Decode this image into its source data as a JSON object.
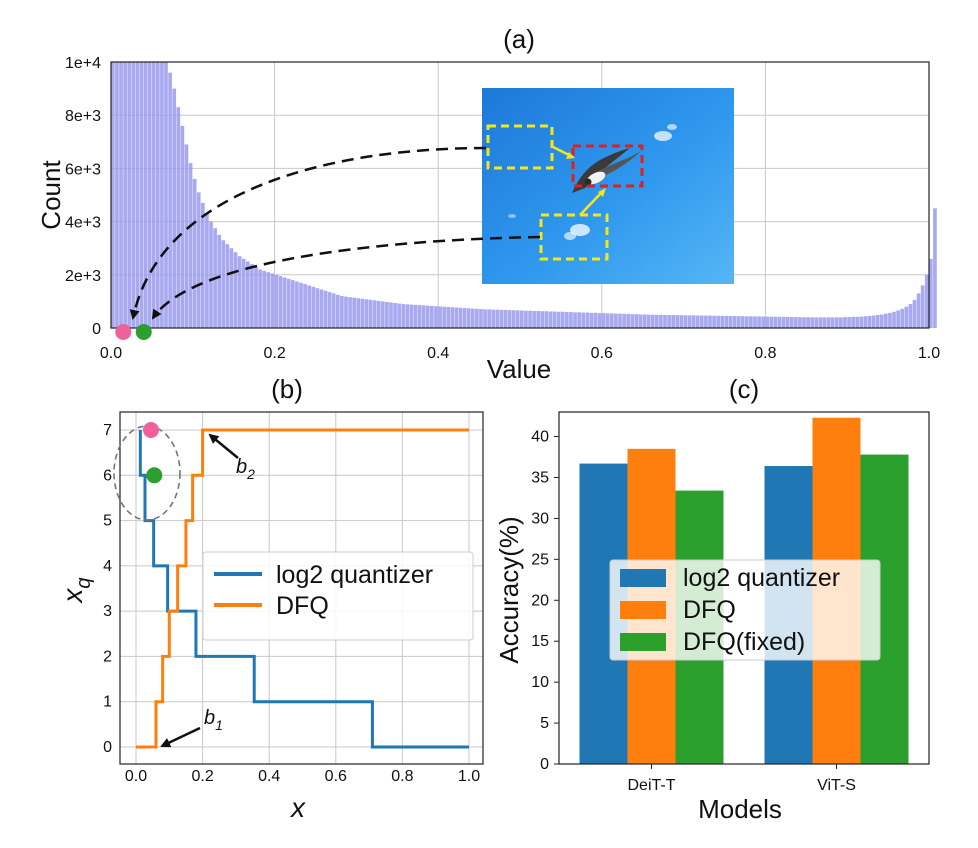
{
  "chart_data": [
    {
      "type": "bar",
      "panel": "a",
      "title": "(a)",
      "xlabel": "Value",
      "ylabel": "Count",
      "xlim": [
        0,
        1
      ],
      "ylim": [
        0,
        10000
      ],
      "grid": true,
      "color": "#9a9af0",
      "xticks": [
        "0.0",
        "0.2",
        "0.4",
        "0.6",
        "0.8",
        "1.0"
      ],
      "yticks": [
        "0",
        "2e+3",
        "4e+3",
        "6e+3",
        "8e+3",
        "1e+4"
      ],
      "bin_width": 0.005,
      "values": [
        10000,
        10000,
        10000,
        10000,
        10000,
        10000,
        10000,
        10000,
        10000,
        10000,
        10000,
        10000,
        10000,
        10000,
        9600,
        9000,
        8300,
        7600,
        6900,
        6200,
        5600,
        5100,
        4700,
        4300,
        4000,
        3750,
        3500,
        3300,
        3150,
        3000,
        2850,
        2700,
        2600,
        2500,
        2400,
        2300,
        2200,
        2150,
        2100,
        2050,
        2000,
        1950,
        1900,
        1850,
        1800,
        1750,
        1700,
        1650,
        1600,
        1550,
        1500,
        1450,
        1400,
        1350,
        1300,
        1250,
        1200,
        1180,
        1160,
        1140,
        1120,
        1100,
        1080,
        1060,
        1040,
        1020,
        1000,
        980,
        960,
        940,
        920,
        900,
        890,
        880,
        870,
        860,
        850,
        840,
        830,
        820,
        810,
        800,
        790,
        780,
        770,
        760,
        750,
        740,
        730,
        720,
        710,
        700,
        700,
        690,
        690,
        680,
        680,
        670,
        670,
        660,
        660,
        650,
        650,
        640,
        640,
        630,
        630,
        620,
        620,
        610,
        610,
        600,
        600,
        590,
        590,
        580,
        580,
        570,
        570,
        560,
        560,
        550,
        550,
        540,
        540,
        530,
        530,
        520,
        520,
        510,
        510,
        500,
        500,
        495,
        495,
        490,
        490,
        485,
        485,
        480,
        480,
        475,
        475,
        470,
        470,
        465,
        465,
        460,
        460,
        455,
        455,
        450,
        450,
        445,
        445,
        440,
        440,
        435,
        435,
        430,
        430,
        425,
        425,
        420,
        420,
        415,
        415,
        410,
        410,
        405,
        405,
        400,
        400,
        400,
        400,
        400,
        400,
        400,
        400,
        410,
        410,
        420,
        420,
        430,
        440,
        450,
        470,
        490,
        510,
        540,
        570,
        610,
        660,
        720,
        800,
        900,
        1050,
        1300,
        1600,
        2000,
        2600,
        4500
      ],
      "markers": [
        {
          "label": "pink",
          "x": 0.015,
          "color": "#f0609a"
        },
        {
          "label": "green",
          "x": 0.04,
          "color": "#2ca02c"
        }
      ]
    },
    {
      "type": "line",
      "panel": "b",
      "title": "(b)",
      "xlabel": "x",
      "ylabel": "x_q",
      "xlim": [
        0,
        1
      ],
      "ylim": [
        0,
        7
      ],
      "grid": true,
      "xticks": [
        "0.0",
        "0.2",
        "0.4",
        "0.6",
        "0.8",
        "1.0"
      ],
      "yticks": [
        "0",
        "1",
        "2",
        "3",
        "4",
        "5",
        "6",
        "7"
      ],
      "legend_position": "center-right",
      "series": [
        {
          "name": "log2 quantizer",
          "color": "#1f77b4",
          "x": [
            0.013,
            0.013,
            0.027,
            0.027,
            0.053,
            0.053,
            0.095,
            0.095,
            0.18,
            0.18,
            0.355,
            0.355,
            0.71,
            0.71,
            1.0
          ],
          "y": [
            7,
            6,
            6,
            5,
            5,
            4,
            4,
            3,
            3,
            2,
            2,
            1,
            1,
            0,
            0
          ]
        },
        {
          "name": "DFQ",
          "color": "#ff7f0e",
          "x": [
            0.0,
            0.06,
            0.06,
            0.08,
            0.08,
            0.1,
            0.1,
            0.125,
            0.125,
            0.15,
            0.15,
            0.17,
            0.17,
            0.2,
            0.2,
            1.0
          ],
          "y": [
            0,
            0,
            1,
            1,
            2,
            2,
            3,
            3,
            4,
            4,
            5,
            5,
            6,
            6,
            7,
            7
          ]
        }
      ],
      "markers": [
        {
          "x": 0.045,
          "y": 7,
          "color": "#f0609a"
        },
        {
          "x": 0.055,
          "y": 6,
          "color": "#2ca02c"
        }
      ],
      "annotations": [
        {
          "text": "b",
          "sub": "1",
          "x": 0.065,
          "y": 0
        },
        {
          "text": "b",
          "sub": "2",
          "x": 0.2,
          "y": 7
        }
      ]
    },
    {
      "type": "bar",
      "panel": "c",
      "title": "(c)",
      "xlabel": "Models",
      "ylabel": "Accuracy(%)",
      "ylim": [
        0,
        43
      ],
      "yticks": [
        "0",
        "5",
        "10",
        "15",
        "20",
        "25",
        "30",
        "35",
        "40"
      ],
      "categories": [
        "DeiT-T",
        "ViT-S"
      ],
      "legend_position": "center",
      "series": [
        {
          "name": "log2 quantizer",
          "color": "#1f77b4",
          "values": [
            36.7,
            36.4
          ]
        },
        {
          "name": "DFQ",
          "color": "#ff7f0e",
          "values": [
            38.5,
            42.3
          ]
        },
        {
          "name": "DFQ(fixed)",
          "color": "#2ca02c",
          "values": [
            33.4,
            37.8
          ]
        }
      ]
    }
  ]
}
